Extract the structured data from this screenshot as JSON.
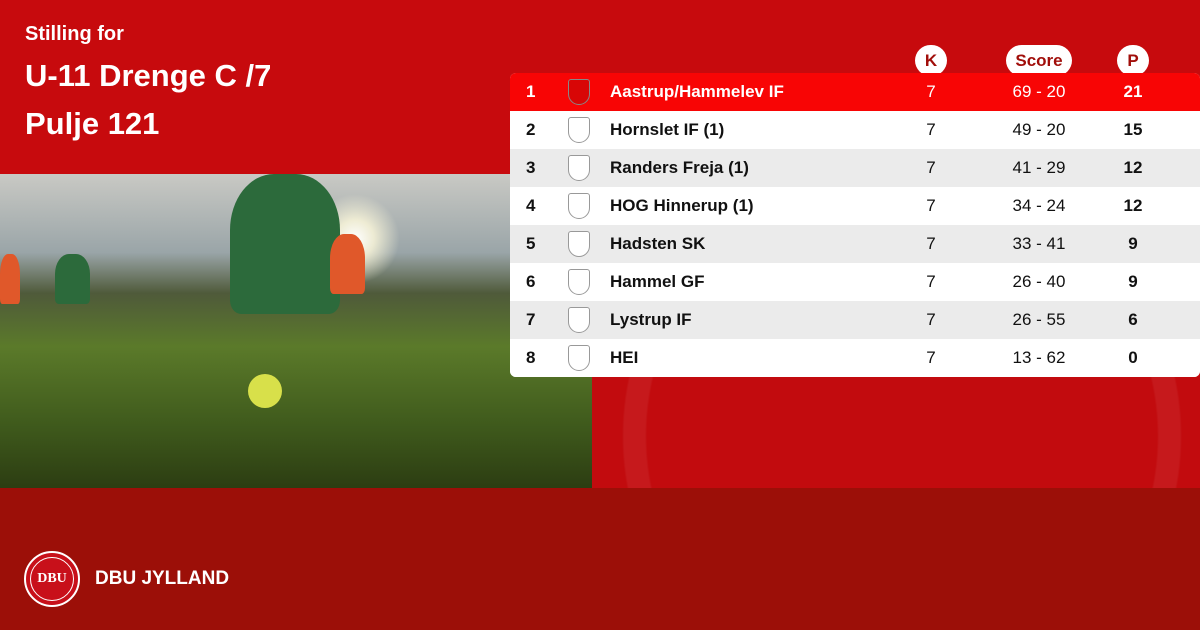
{
  "header": {
    "label": "Stilling for",
    "title": "U-11 Drenge C /7",
    "pool": "Pulje 121"
  },
  "columns": {
    "played": "K",
    "score": "Score",
    "points": "P"
  },
  "rows": [
    {
      "pos": "1",
      "team": "Aastrup/Hammelev  IF",
      "played": "7",
      "score": "69 - 20",
      "points": "21",
      "highlight": true
    },
    {
      "pos": "2",
      "team": "Hornslet IF (1)",
      "played": "7",
      "score": "49 - 20",
      "points": "15"
    },
    {
      "pos": "3",
      "team": "Randers Freja (1)",
      "played": "7",
      "score": "41 - 29",
      "points": "12"
    },
    {
      "pos": "4",
      "team": "HOG Hinnerup (1)",
      "played": "7",
      "score": "34 - 24",
      "points": "12"
    },
    {
      "pos": "5",
      "team": "Hadsten SK",
      "played": "7",
      "score": "33 - 41",
      "points": "9"
    },
    {
      "pos": "6",
      "team": "Hammel GF",
      "played": "7",
      "score": "26 - 40",
      "points": "9"
    },
    {
      "pos": "7",
      "team": "Lystrup IF",
      "played": "7",
      "score": "26 - 55",
      "points": "6"
    },
    {
      "pos": "8",
      "team": "HEI",
      "played": "7",
      "score": "13 - 62",
      "points": "0"
    }
  ],
  "footer": {
    "brand": "DBU JYLLAND",
    "logo_text": "DBU"
  },
  "colors": {
    "primary": "#c70a0d",
    "highlight": "#f80505",
    "footer": "#9c0f08"
  }
}
